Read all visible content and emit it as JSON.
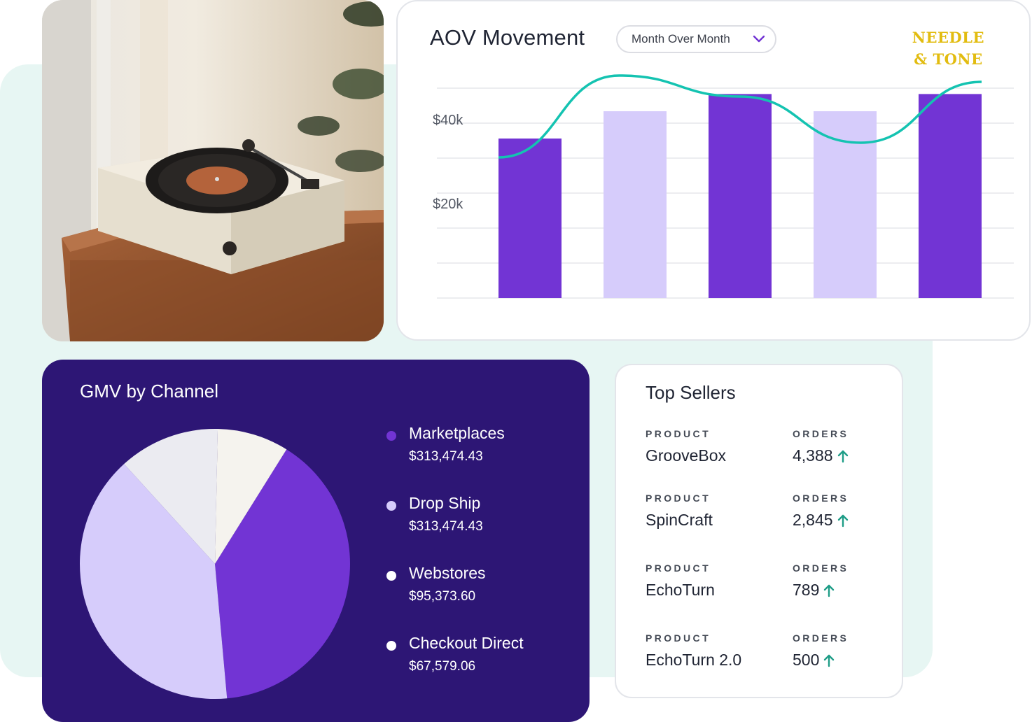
{
  "aov": {
    "title": "AOV Movement",
    "period": "Month Over Month",
    "brand_line1": "NEEDLE",
    "brand_line2": "& TONE",
    "chart_data": {
      "type": "bar",
      "title": "AOV Movement",
      "y_tick_labels": [
        "$40k",
        "$20k"
      ],
      "ylim": [
        0,
        50000
      ],
      "grid": true,
      "bar_values": [
        38000,
        44500,
        48600,
        44500,
        48600
      ],
      "bar_colors": [
        "#7234d4",
        "#d6ccfb",
        "#7234d4",
        "#d6ccfb",
        "#7234d4"
      ],
      "line_values": [
        33500,
        53000,
        48000,
        37000,
        51500
      ],
      "line_color": "#14c3b1"
    }
  },
  "gmv": {
    "title": "GMV by Channel",
    "chart_data": {
      "type": "pie",
      "title": "GMV by Channel",
      "slices": [
        {
          "label": "Marketplaces",
          "value": 313474.43,
          "display": "$313,474.43",
          "color": "#7234d4"
        },
        {
          "label": "Drop Ship",
          "value": 313474.43,
          "display": "$313,474.43",
          "color": "#d6ccfb"
        },
        {
          "label": "Webstores",
          "value": 95373.6,
          "display": "$95,373.60",
          "color": "#ebebf1"
        },
        {
          "label": "Checkout Direct",
          "value": 67579.06,
          "display": "$67,579.06",
          "color": "#f5f3ee"
        }
      ]
    },
    "legend": [
      {
        "label": "Marketplaces",
        "value": "$313,474.43",
        "dot": "#7234d4"
      },
      {
        "label": "Drop Ship",
        "value": "$313,474.43",
        "dot": "#d6ccfb"
      },
      {
        "label": "Webstores",
        "value": "$95,373.60",
        "dot": "#ffffff"
      },
      {
        "label": "Checkout Direct",
        "value": "$67,579.06",
        "dot": "#ffffff"
      }
    ]
  },
  "sellers": {
    "title": "Top Sellers",
    "product_header": "PRODUCT",
    "orders_header": "ORDERS",
    "trend_icon": "arrow-up-icon",
    "trend_color": "#1f9d87",
    "rows": [
      {
        "product": "GrooveBox",
        "orders": "4,388"
      },
      {
        "product": "SpinCraft",
        "orders": "2,845"
      },
      {
        "product": "EchoTurn",
        "orders": "789"
      },
      {
        "product": "EchoTurn 2.0",
        "orders": "500"
      }
    ]
  }
}
